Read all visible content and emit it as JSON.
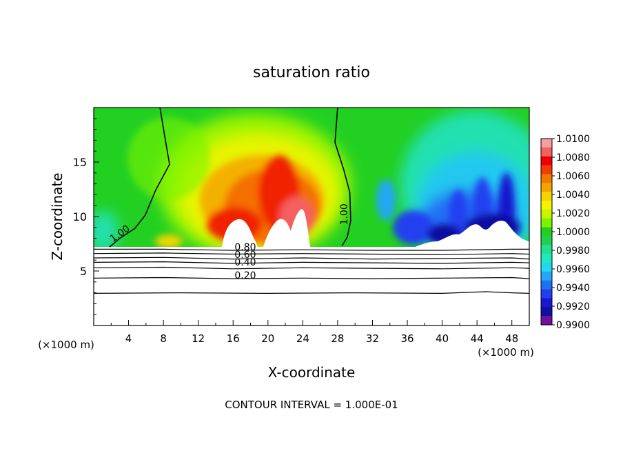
{
  "chart_data": {
    "type": "heatmap",
    "title": "saturation ratio",
    "xlabel": "X-coordinate",
    "ylabel": "Z-coordinate",
    "x_unit_left": "(×1000 m)",
    "x_unit_right": "(×1000 m)",
    "xlim": [
      0,
      50
    ],
    "ylim": [
      0,
      20
    ],
    "xticks": [
      4,
      8,
      12,
      16,
      20,
      24,
      28,
      32,
      36,
      40,
      44,
      48
    ],
    "yticks": [
      5,
      10,
      15
    ],
    "footer": "CONTOUR INTERVAL = 1.000E-01",
    "colorbar": {
      "min": 0.99,
      "max": 1.01,
      "tick_labels": [
        "1.0100",
        "1.0080",
        "1.0060",
        "1.0040",
        "1.0020",
        "1.0000",
        "0.9980",
        "0.9960",
        "0.9940",
        "0.9920",
        "0.9900"
      ],
      "colors": [
        "#f4a0a0",
        "#f46060",
        "#f00000",
        "#f43c00",
        "#f47800",
        "#f4a400",
        "#f4d400",
        "#f4f400",
        "#c8f400",
        "#7cf400",
        "#22d022",
        "#22d050",
        "#22e090",
        "#22e8c0",
        "#22d8f0",
        "#22a8f4",
        "#2070f4",
        "#2040f0",
        "#1818d0",
        "#1010a0",
        "#7010a0"
      ]
    },
    "contour_labels": [
      {
        "text": "1.00",
        "x": 3.2,
        "z": 8.2
      },
      {
        "text": "1.00",
        "x": 29.1,
        "z": 10.2
      },
      {
        "text": "0.80",
        "x": 17.4,
        "z": 6.9
      },
      {
        "text": "0.60",
        "x": 17.4,
        "z": 6.2
      },
      {
        "text": "0.40",
        "x": 17.4,
        "z": 5.5
      },
      {
        "text": "0.20",
        "x": 17.4,
        "z": 4.3
      }
    ],
    "contours": [
      {
        "level": 1.0,
        "points": [
          [
            1.8,
            7.2
          ],
          [
            3.0,
            8.0
          ],
          [
            4.7,
            8.9
          ],
          [
            5.9,
            10.1
          ],
          [
            7.1,
            12.4
          ],
          [
            8.7,
            14.8
          ],
          [
            8.1,
            17.6
          ],
          [
            7.6,
            20.0
          ]
        ]
      },
      {
        "level": 1.0,
        "points": [
          [
            28.0,
            20.0
          ],
          [
            27.7,
            16.8
          ],
          [
            28.7,
            14.3
          ],
          [
            29.4,
            12.2
          ],
          [
            29.5,
            9.6
          ],
          [
            29.1,
            8.1
          ],
          [
            28.5,
            7.3
          ]
        ]
      },
      {
        "level": 0.8,
        "points": [
          [
            0,
            7.0
          ],
          [
            8,
            7.0
          ],
          [
            16,
            6.9
          ],
          [
            24,
            6.95
          ],
          [
            32,
            6.9
          ],
          [
            40,
            6.9
          ],
          [
            48,
            7.0
          ],
          [
            50,
            7.0
          ]
        ]
      },
      {
        "level": 0.7,
        "points": [
          [
            0,
            6.6
          ],
          [
            8,
            6.65
          ],
          [
            16,
            6.55
          ],
          [
            24,
            6.6
          ],
          [
            32,
            6.55
          ],
          [
            40,
            6.5
          ],
          [
            48,
            6.6
          ],
          [
            50,
            6.55
          ]
        ]
      },
      {
        "level": 0.6,
        "points": [
          [
            0,
            6.2
          ],
          [
            8,
            6.25
          ],
          [
            16,
            6.1
          ],
          [
            24,
            6.2
          ],
          [
            32,
            6.1
          ],
          [
            40,
            6.15
          ],
          [
            48,
            6.2
          ],
          [
            50,
            6.1
          ]
        ]
      },
      {
        "level": 0.5,
        "points": [
          [
            0,
            5.8
          ],
          [
            8,
            5.85
          ],
          [
            16,
            5.7
          ],
          [
            24,
            5.8
          ],
          [
            32,
            5.75
          ],
          [
            40,
            5.7
          ],
          [
            48,
            5.8
          ],
          [
            50,
            5.75
          ]
        ]
      },
      {
        "level": 0.4,
        "points": [
          [
            0,
            5.3
          ],
          [
            8,
            5.35
          ],
          [
            16,
            5.2
          ],
          [
            24,
            5.3
          ],
          [
            32,
            5.25
          ],
          [
            40,
            5.2
          ],
          [
            48,
            5.3
          ],
          [
            50,
            5.25
          ]
        ]
      },
      {
        "level": 0.2,
        "points": [
          [
            0,
            4.35
          ],
          [
            8,
            4.4
          ],
          [
            16,
            4.3
          ],
          [
            24,
            4.35
          ],
          [
            32,
            4.3
          ],
          [
            40,
            4.35
          ],
          [
            48,
            4.4
          ],
          [
            50,
            4.3
          ]
        ]
      },
      {
        "level": 0.1,
        "points": [
          [
            0,
            2.95
          ],
          [
            10,
            3.0
          ],
          [
            20,
            2.95
          ],
          [
            30,
            3.0
          ],
          [
            40,
            2.95
          ],
          [
            45,
            3.1
          ],
          [
            48,
            3.0
          ],
          [
            50,
            2.95
          ]
        ]
      }
    ]
  }
}
